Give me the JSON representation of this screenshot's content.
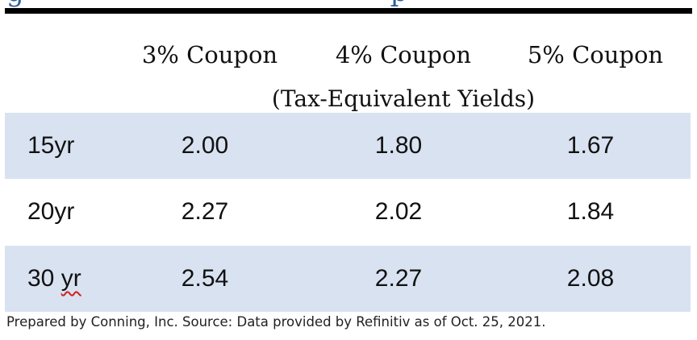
{
  "table": {
    "columns": [
      "3% Coupon",
      "4% Coupon",
      "5% Coupon"
    ],
    "subheader": "(Tax-Equivalent Yields)",
    "rows": [
      {
        "term": "15yr",
        "values": [
          "2.00",
          "1.80",
          "1.67"
        ]
      },
      {
        "term": "20yr",
        "values": [
          "2.27",
          "2.02",
          "1.84"
        ]
      },
      {
        "term_num": "30 ",
        "term_unit": "yr",
        "values": [
          "2.54",
          "2.27",
          "2.08"
        ]
      }
    ],
    "row_shade_color": "#d9e2f1"
  },
  "footnote": "Prepared by Conning, Inc. Source: Data provided by Refinitiv as of Oct. 25, 2021."
}
